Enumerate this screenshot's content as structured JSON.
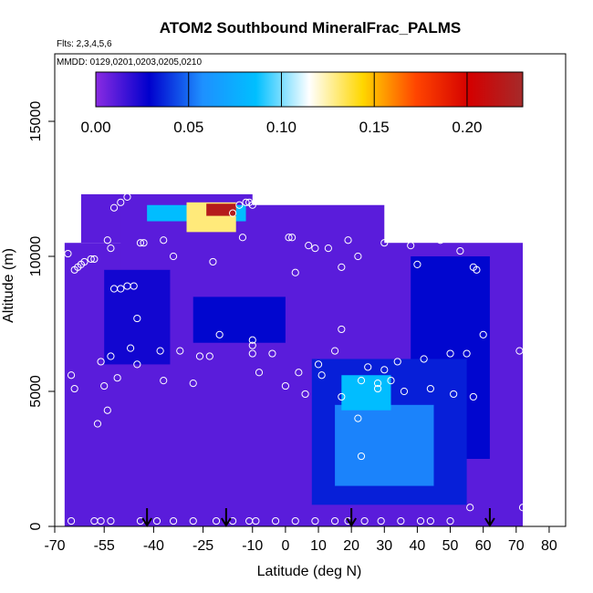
{
  "chart_data": {
    "type": "heatmap",
    "title": "ATOM2 Southbound MineralFrac_PALMS",
    "flights_note": "Flts: 2,3,4,5,6",
    "dates_note": "MMDD: 0129,0201,0203,0205,0210",
    "xlabel": "Latitude (deg N)",
    "ylabel": "Altitude (m)",
    "xlim": [
      -70,
      85
    ],
    "ylim": [
      0,
      17500
    ],
    "xticks": [
      -70,
      -55,
      -40,
      -25,
      -10,
      0,
      10,
      20,
      30,
      40,
      50,
      60,
      70,
      80
    ],
    "xtick_labels": [
      "-70",
      "-55",
      "-40",
      "-25",
      "-10",
      "0",
      "10",
      "20",
      "30",
      "40",
      "50",
      "60",
      "70",
      "80"
    ],
    "yticks": [
      0,
      5000,
      10000,
      15000
    ],
    "ytick_labels": [
      "0",
      "5000",
      "10000",
      "15000"
    ],
    "colorbar": {
      "range": [
        0.0,
        0.23
      ],
      "ticks": [
        0.0,
        0.05,
        0.1,
        0.15,
        0.2
      ],
      "tick_labels": [
        "0.00",
        "0.05",
        "0.10",
        "0.15",
        "0.20"
      ],
      "colors": [
        "#8a2be2",
        "#0000cd",
        "#1e90ff",
        "#00bfff",
        "#ffffff",
        "#ffd700",
        "#ff4500",
        "#d40000",
        "#a52a2a"
      ]
    },
    "arrow_latitudes": [
      -42,
      -18,
      20,
      62
    ],
    "heatmap_regions": [
      {
        "lat": [
          -67,
          72
        ],
        "alt": [
          0,
          10500
        ],
        "value": 0.01
      },
      {
        "lat": [
          -62,
          -10
        ],
        "alt": [
          10500,
          12300
        ],
        "value": 0.01
      },
      {
        "lat": [
          -50,
          30
        ],
        "alt": [
          9000,
          11900
        ],
        "value": 0.01
      },
      {
        "lat": [
          -55,
          -35
        ],
        "alt": [
          6000,
          9500
        ],
        "value": 0.025
      },
      {
        "lat": [
          -28,
          0
        ],
        "alt": [
          6800,
          8500
        ],
        "value": 0.03
      },
      {
        "lat": [
          38,
          62
        ],
        "alt": [
          2500,
          10000
        ],
        "value": 0.03
      },
      {
        "lat": [
          8,
          55
        ],
        "alt": [
          800,
          6200
        ],
        "value": 0.035
      },
      {
        "lat": [
          15,
          45
        ],
        "alt": [
          1500,
          4500
        ],
        "value": 0.055
      },
      {
        "lat": [
          17,
          32
        ],
        "alt": [
          4300,
          5600
        ],
        "value": 0.085
      },
      {
        "lat": [
          -42,
          -12
        ],
        "alt": [
          11300,
          11900
        ],
        "value": 0.085
      },
      {
        "lat": [
          -30,
          -15
        ],
        "alt": [
          10900,
          12000
        ],
        "value": 0.13
      },
      {
        "lat": [
          -24,
          -15
        ],
        "alt": [
          11500,
          11950
        ],
        "value": 0.22
      }
    ],
    "points": [
      {
        "lat": -66,
        "alt": 10100
      },
      {
        "lat": -64,
        "alt": 9500
      },
      {
        "lat": -63,
        "alt": 9600
      },
      {
        "lat": -62,
        "alt": 9700
      },
      {
        "lat": -61,
        "alt": 9800
      },
      {
        "lat": -59,
        "alt": 9900
      },
      {
        "lat": -58,
        "alt": 9900
      },
      {
        "lat": -65,
        "alt": 5600
      },
      {
        "lat": -64,
        "alt": 5100
      },
      {
        "lat": -56,
        "alt": 6100
      },
      {
        "lat": -55,
        "alt": 5200
      },
      {
        "lat": -54,
        "alt": 4300
      },
      {
        "lat": -52,
        "alt": 11800
      },
      {
        "lat": -50,
        "alt": 12000
      },
      {
        "lat": -48,
        "alt": 12200
      },
      {
        "lat": -54,
        "alt": 10600
      },
      {
        "lat": -53,
        "alt": 10300
      },
      {
        "lat": -52,
        "alt": 8800
      },
      {
        "lat": -50,
        "alt": 8800
      },
      {
        "lat": -48,
        "alt": 8900
      },
      {
        "lat": -46,
        "alt": 8900
      },
      {
        "lat": -45,
        "alt": 7700
      },
      {
        "lat": -47,
        "alt": 6600
      },
      {
        "lat": -45,
        "alt": 6000
      },
      {
        "lat": -51,
        "alt": 5500
      },
      {
        "lat": -57,
        "alt": 3800
      },
      {
        "lat": -53,
        "alt": 6300
      },
      {
        "lat": -44,
        "alt": 10500
      },
      {
        "lat": -43,
        "alt": 10500
      },
      {
        "lat": -37,
        "alt": 10600
      },
      {
        "lat": -34,
        "alt": 10000
      },
      {
        "lat": -38,
        "alt": 6500
      },
      {
        "lat": -37,
        "alt": 5400
      },
      {
        "lat": -32,
        "alt": 6500
      },
      {
        "lat": -28,
        "alt": 5300
      },
      {
        "lat": -26,
        "alt": 6300
      },
      {
        "lat": -23,
        "alt": 6300
      },
      {
        "lat": -22,
        "alt": 9800
      },
      {
        "lat": -20,
        "alt": 7100
      },
      {
        "lat": -16,
        "alt": 11600
      },
      {
        "lat": -14,
        "alt": 11900
      },
      {
        "lat": -12,
        "alt": 12000
      },
      {
        "lat": -11,
        "alt": 12000
      },
      {
        "lat": -10,
        "alt": 11900
      },
      {
        "lat": -13,
        "alt": 10700
      },
      {
        "lat": -10,
        "alt": 6900
      },
      {
        "lat": -10,
        "alt": 6700
      },
      {
        "lat": -10,
        "alt": 6400
      },
      {
        "lat": -8,
        "alt": 5700
      },
      {
        "lat": -4,
        "alt": 6400
      },
      {
        "lat": 1,
        "alt": 10700
      },
      {
        "lat": 2,
        "alt": 10700
      },
      {
        "lat": 3,
        "alt": 9400
      },
      {
        "lat": 0,
        "alt": 5200
      },
      {
        "lat": 4,
        "alt": 5700
      },
      {
        "lat": 6,
        "alt": 4900
      },
      {
        "lat": 7,
        "alt": 10400
      },
      {
        "lat": 9,
        "alt": 10300
      },
      {
        "lat": 10,
        "alt": 6000
      },
      {
        "lat": 11,
        "alt": 5600
      },
      {
        "lat": 13,
        "alt": 10300
      },
      {
        "lat": 15,
        "alt": 6500
      },
      {
        "lat": 17,
        "alt": 9600
      },
      {
        "lat": 17,
        "alt": 7300
      },
      {
        "lat": 17,
        "alt": 4800
      },
      {
        "lat": 19,
        "alt": 10600
      },
      {
        "lat": 22,
        "alt": 10000
      },
      {
        "lat": 22,
        "alt": 4000
      },
      {
        "lat": 23,
        "alt": 2600
      },
      {
        "lat": 23,
        "alt": 5400
      },
      {
        "lat": 25,
        "alt": 5900
      },
      {
        "lat": 28,
        "alt": 5100
      },
      {
        "lat": 28,
        "alt": 5300
      },
      {
        "lat": 30,
        "alt": 5800
      },
      {
        "lat": 32,
        "alt": 5400
      },
      {
        "lat": 34,
        "alt": 6100
      },
      {
        "lat": 36,
        "alt": 5000
      },
      {
        "lat": 40,
        "alt": 9700
      },
      {
        "lat": 42,
        "alt": 6200
      },
      {
        "lat": 44,
        "alt": 5100
      },
      {
        "lat": 47,
        "alt": 10600
      },
      {
        "lat": 50,
        "alt": 6400
      },
      {
        "lat": 51,
        "alt": 4900
      },
      {
        "lat": 53,
        "alt": 10200
      },
      {
        "lat": 55,
        "alt": 6400
      },
      {
        "lat": 57,
        "alt": 4800
      },
      {
        "lat": 57,
        "alt": 9600
      },
      {
        "lat": 58,
        "alt": 9500
      },
      {
        "lat": 60,
        "alt": 7100
      },
      {
        "lat": 66,
        "alt": 11300
      },
      {
        "lat": 69,
        "alt": 11300
      },
      {
        "lat": 71,
        "alt": 6500
      },
      {
        "lat": 56,
        "alt": 700
      },
      {
        "lat": 72,
        "alt": 700
      },
      {
        "lat": 38,
        "alt": 10400
      },
      {
        "lat": 30,
        "alt": 10500
      },
      {
        "lat": -65,
        "alt": 200
      },
      {
        "lat": -58,
        "alt": 200
      },
      {
        "lat": -56,
        "alt": 200
      },
      {
        "lat": -53,
        "alt": 200
      },
      {
        "lat": -44,
        "alt": 200
      },
      {
        "lat": -39,
        "alt": 200
      },
      {
        "lat": -34,
        "alt": 200
      },
      {
        "lat": -28,
        "alt": 200
      },
      {
        "lat": -21,
        "alt": 200
      },
      {
        "lat": -16,
        "alt": 200
      },
      {
        "lat": -11,
        "alt": 200
      },
      {
        "lat": -9,
        "alt": 200
      },
      {
        "lat": -3,
        "alt": 200
      },
      {
        "lat": 3,
        "alt": 200
      },
      {
        "lat": 9,
        "alt": 200
      },
      {
        "lat": 15,
        "alt": 200
      },
      {
        "lat": 19,
        "alt": 200
      },
      {
        "lat": 24,
        "alt": 200
      },
      {
        "lat": 29,
        "alt": 200
      },
      {
        "lat": 35,
        "alt": 200
      },
      {
        "lat": 41,
        "alt": 200
      },
      {
        "lat": 44,
        "alt": 200
      },
      {
        "lat": 50,
        "alt": 200
      }
    ]
  }
}
